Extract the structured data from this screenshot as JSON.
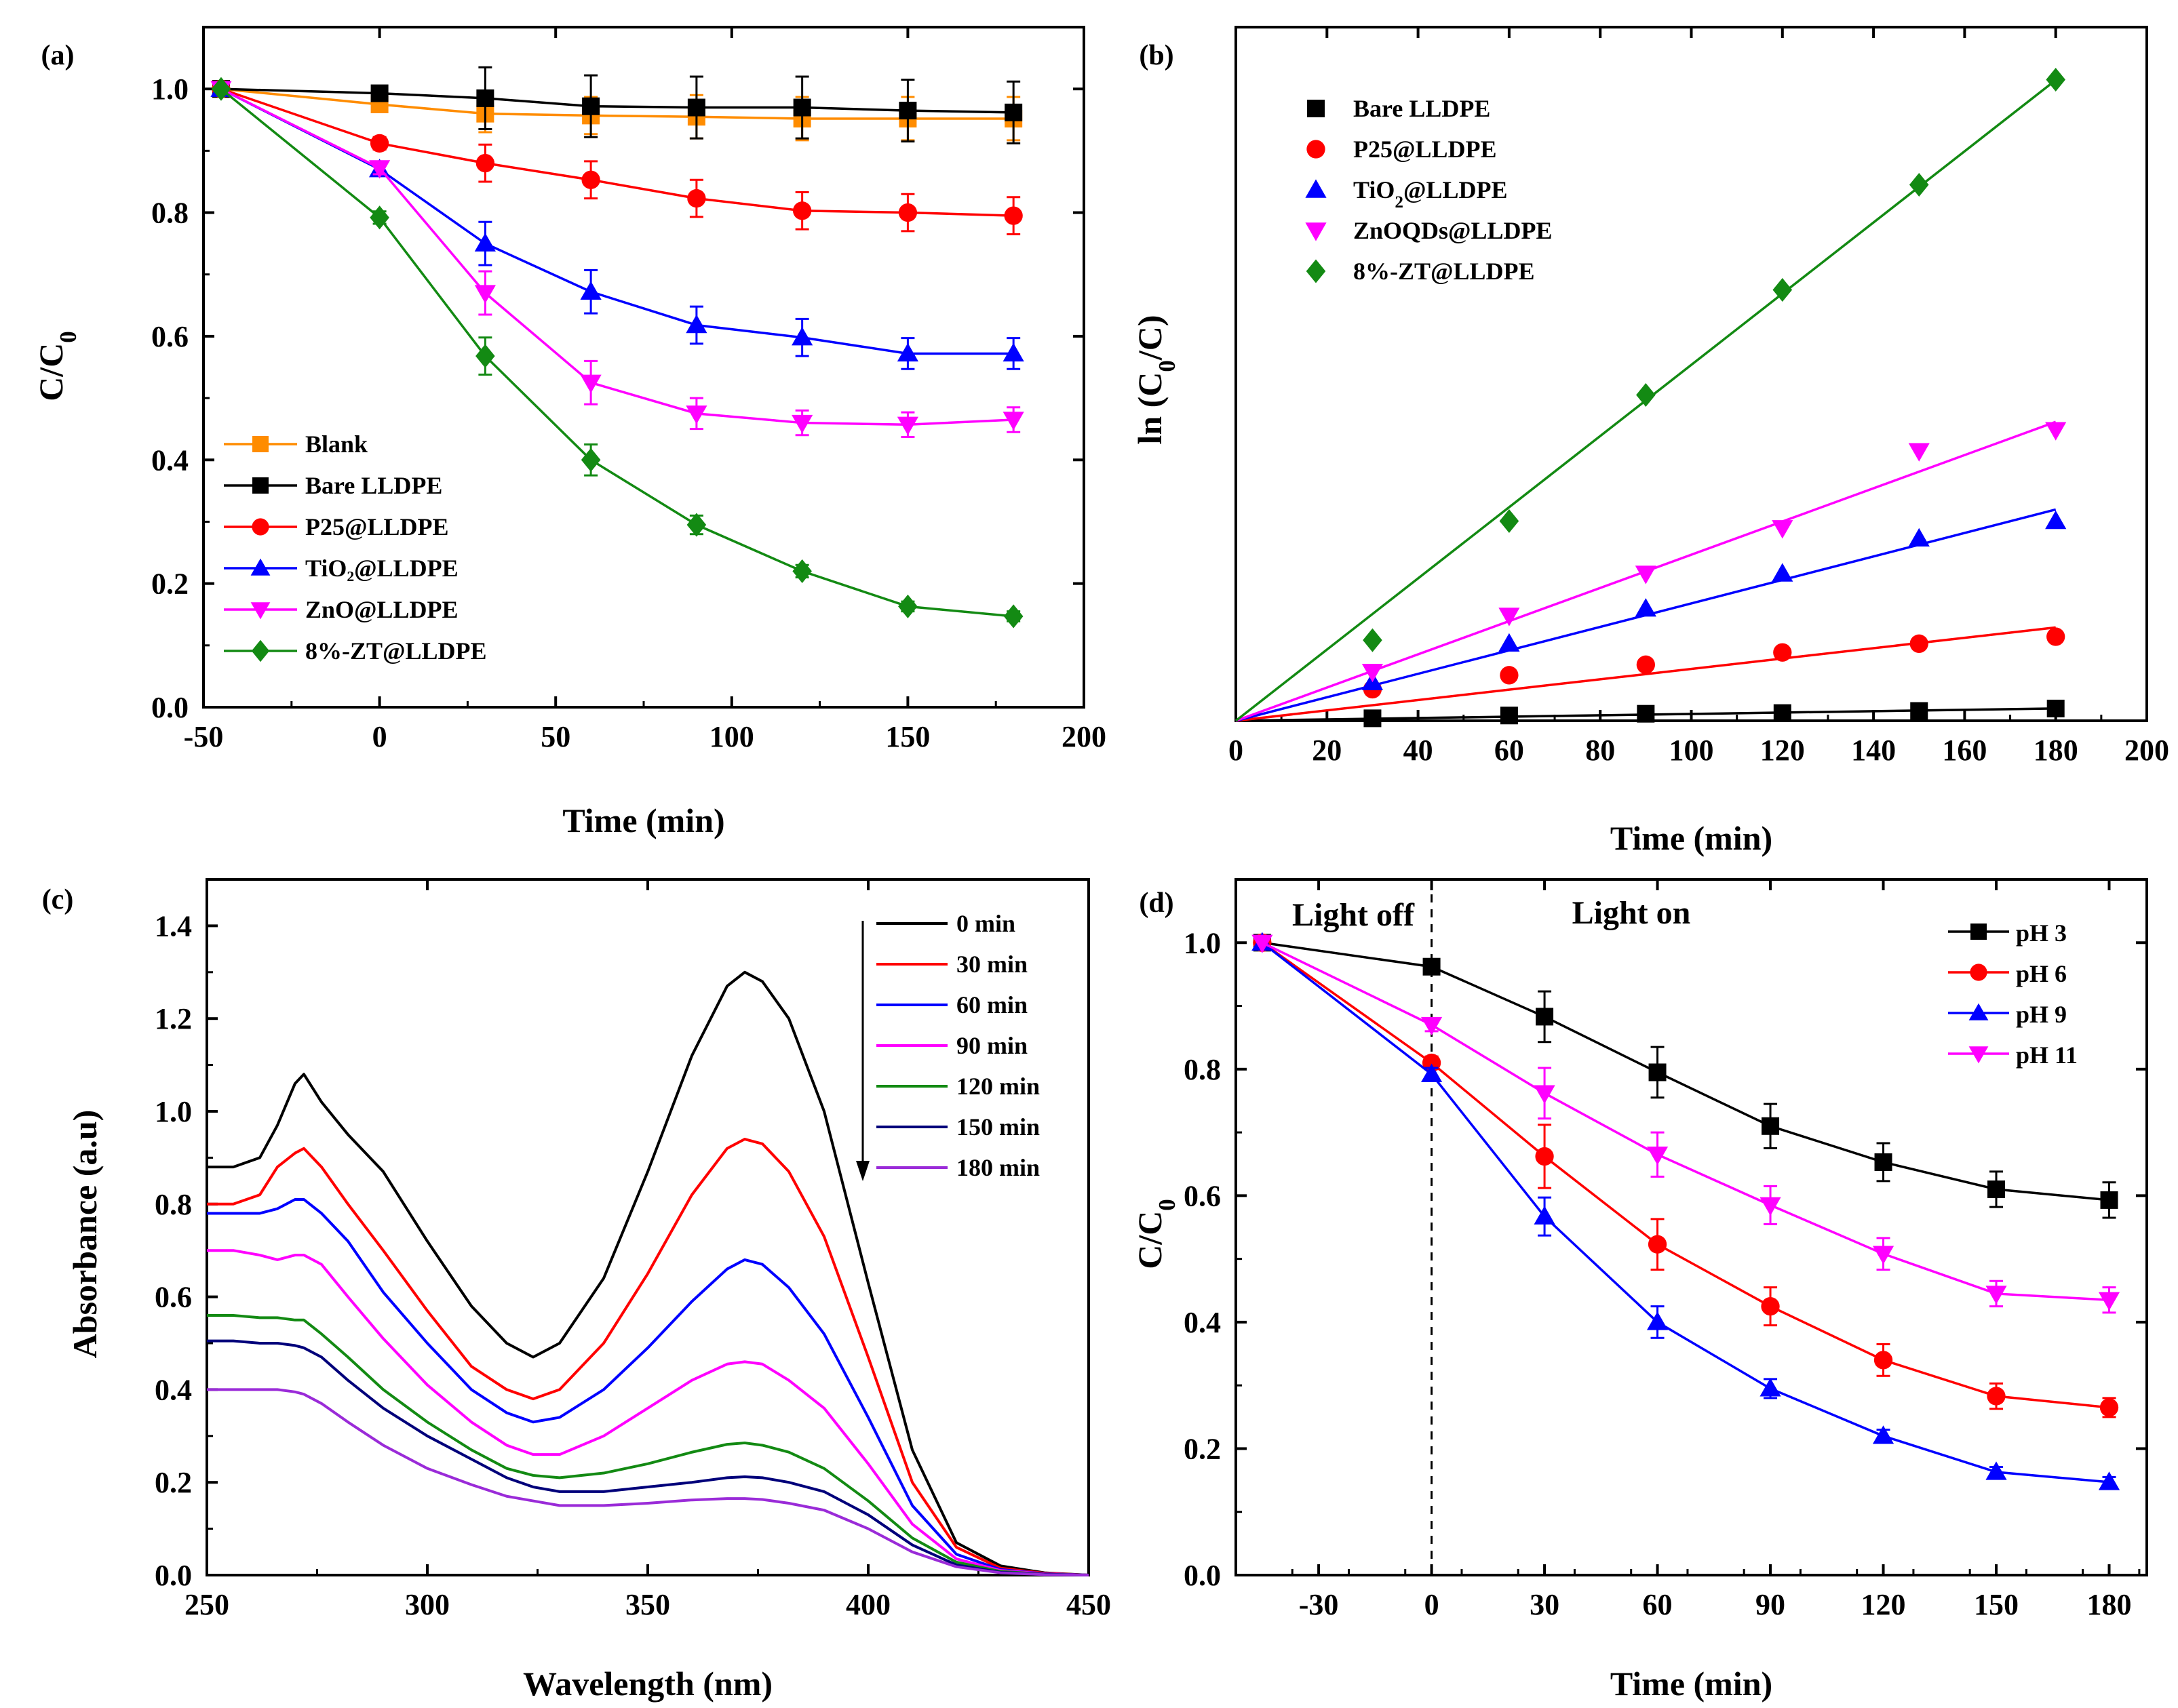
{
  "chart_data": [
    {
      "panel": "(a)",
      "type": "line",
      "xlabel": "Time (min)",
      "ylabel": "C/C0",
      "xlim": [
        -50,
        200
      ],
      "ylim": [
        0.0,
        1.1
      ],
      "xticks": [
        -50,
        0,
        50,
        100,
        150,
        200
      ],
      "yticks": [
        0.0,
        0.2,
        0.4,
        0.6,
        0.8,
        1.0
      ],
      "x": [
        -45,
        0,
        30,
        60,
        90,
        120,
        150,
        180
      ],
      "legend_position": "bottom-left",
      "series": [
        {
          "name": "Blank",
          "color": "#ff8c00",
          "marker": "square",
          "values": [
            1.0,
            0.975,
            0.96,
            0.957,
            0.955,
            0.952,
            0.952,
            0.952
          ],
          "errors": [
            0,
            0.01,
            0.03,
            0.03,
            0.035,
            0.035,
            0.035,
            0.035
          ]
        },
        {
          "name": "Bare LLDPE",
          "color": "#000000",
          "marker": "square",
          "values": [
            1.0,
            0.993,
            0.985,
            0.972,
            0.97,
            0.97,
            0.965,
            0.962
          ],
          "errors": [
            0,
            0.01,
            0.05,
            0.05,
            0.05,
            0.05,
            0.05,
            0.05
          ]
        },
        {
          "name": "P25@LLDPE",
          "color": "#ff0000",
          "marker": "circle",
          "values": [
            1.0,
            0.912,
            0.88,
            0.853,
            0.823,
            0.803,
            0.8,
            0.795
          ],
          "errors": [
            0,
            0.01,
            0.03,
            0.03,
            0.03,
            0.03,
            0.03,
            0.03
          ]
        },
        {
          "name": "TiO₂@LLDPE",
          "color": "#0000ff",
          "marker": "triangle-up",
          "values": [
            1.0,
            0.87,
            0.75,
            0.672,
            0.618,
            0.598,
            0.572,
            0.572
          ],
          "errors": [
            0,
            0.01,
            0.035,
            0.035,
            0.03,
            0.03,
            0.025,
            0.025
          ]
        },
        {
          "name": "ZnO@LLDPE",
          "color": "#ff00ff",
          "marker": "triangle-down",
          "values": [
            1.0,
            0.872,
            0.67,
            0.525,
            0.475,
            0.46,
            0.457,
            0.465
          ],
          "errors": [
            0,
            0.01,
            0.035,
            0.035,
            0.025,
            0.02,
            0.02,
            0.02
          ]
        },
        {
          "name": "8%-ZT@LLDPE",
          "color": "#138a13",
          "marker": "diamond",
          "values": [
            1.0,
            0.792,
            0.568,
            0.4,
            0.295,
            0.22,
            0.163,
            0.147
          ],
          "errors": [
            0,
            0.01,
            0.03,
            0.025,
            0.015,
            0.01,
            0.008,
            0.008
          ]
        }
      ]
    },
    {
      "panel": "(b)",
      "type": "scatter",
      "xlabel": "Time (min)",
      "ylabel": "ln (C0/C)",
      "xlim": [
        0,
        200
      ],
      "ylim": [
        0,
        1.98
      ],
      "xticks": [
        0,
        20,
        40,
        60,
        80,
        100,
        120,
        140,
        160,
        180,
        200
      ],
      "x": [
        30,
        60,
        90,
        120,
        150,
        180
      ],
      "legend_position": "top-left",
      "series": [
        {
          "name": "Bare LLDPE",
          "color": "#000000",
          "marker": "square",
          "values": [
            0.007,
            0.015,
            0.02,
            0.022,
            0.028,
            0.035
          ],
          "fit_slope": 0.000195
        },
        {
          "name": "P25@LLDPE",
          "color": "#ff0000",
          "marker": "circle",
          "values": [
            0.09,
            0.13,
            0.16,
            0.195,
            0.22,
            0.24
          ],
          "fit_slope": 0.00148
        },
        {
          "name": "TiO₂@LLDPE",
          "color": "#0000ff",
          "marker": "triangle-up",
          "values": [
            0.11,
            0.22,
            0.32,
            0.42,
            0.52,
            0.57
          ],
          "fit_slope": 0.00335
        },
        {
          "name": "ZnOQDs@LLDPE",
          "color": "#ff00ff",
          "marker": "triangle-down",
          "values": [
            0.14,
            0.3,
            0.42,
            0.55,
            0.77,
            0.83
          ],
          "fit_slope": 0.00474
        },
        {
          "name": "8%-ZT@LLDPE",
          "color": "#138a13",
          "marker": "diamond",
          "values": [
            0.23,
            0.57,
            0.93,
            1.23,
            1.53,
            1.83
          ],
          "fit_slope": 0.01016
        }
      ]
    },
    {
      "panel": "(c)",
      "type": "line",
      "xlabel": "Wavelength (nm)",
      "ylabel": "Absorbance (a.u)",
      "xlim": [
        250,
        450
      ],
      "ylim": [
        0.0,
        1.5
      ],
      "xticks": [
        250,
        300,
        350,
        400,
        450
      ],
      "yticks": [
        0.0,
        0.2,
        0.4,
        0.6,
        0.8,
        1.0,
        1.2,
        1.4
      ],
      "x": [
        250,
        256,
        262,
        266,
        270,
        272,
        276,
        282,
        290,
        300,
        310,
        318,
        324,
        330,
        340,
        350,
        360,
        368,
        372,
        376,
        382,
        390,
        400,
        410,
        420,
        430,
        440,
        450
      ],
      "legend_position": "top-right",
      "series": [
        {
          "name": "0 min",
          "color": "#000000",
          "values": [
            0.88,
            0.88,
            0.9,
            0.97,
            1.06,
            1.08,
            1.02,
            0.95,
            0.87,
            0.72,
            0.58,
            0.5,
            0.47,
            0.5,
            0.64,
            0.87,
            1.12,
            1.27,
            1.3,
            1.28,
            1.2,
            1.0,
            0.63,
            0.27,
            0.07,
            0.02,
            0.005,
            0.0
          ]
        },
        {
          "name": "30 min",
          "color": "#ff0000",
          "values": [
            0.8,
            0.8,
            0.82,
            0.88,
            0.91,
            0.92,
            0.88,
            0.8,
            0.7,
            0.57,
            0.45,
            0.4,
            0.38,
            0.4,
            0.5,
            0.65,
            0.82,
            0.92,
            0.94,
            0.93,
            0.87,
            0.73,
            0.47,
            0.2,
            0.06,
            0.015,
            0.004,
            0.0
          ]
        },
        {
          "name": "60 min",
          "color": "#0000ff",
          "values": [
            0.78,
            0.78,
            0.78,
            0.79,
            0.81,
            0.81,
            0.78,
            0.72,
            0.61,
            0.5,
            0.4,
            0.35,
            0.33,
            0.34,
            0.4,
            0.49,
            0.59,
            0.66,
            0.68,
            0.67,
            0.62,
            0.52,
            0.34,
            0.15,
            0.045,
            0.012,
            0.003,
            0.0
          ]
        },
        {
          "name": "90 min",
          "color": "#ff00ff",
          "values": [
            0.7,
            0.7,
            0.69,
            0.68,
            0.69,
            0.69,
            0.67,
            0.6,
            0.51,
            0.41,
            0.33,
            0.28,
            0.26,
            0.26,
            0.3,
            0.36,
            0.42,
            0.455,
            0.46,
            0.455,
            0.42,
            0.36,
            0.24,
            0.11,
            0.035,
            0.01,
            0.003,
            0.0
          ]
        },
        {
          "name": "120 min",
          "color": "#138a13",
          "values": [
            0.56,
            0.56,
            0.555,
            0.555,
            0.55,
            0.55,
            0.52,
            0.47,
            0.4,
            0.33,
            0.27,
            0.23,
            0.215,
            0.21,
            0.22,
            0.24,
            0.265,
            0.282,
            0.285,
            0.28,
            0.265,
            0.23,
            0.16,
            0.08,
            0.028,
            0.008,
            0.002,
            0.0
          ]
        },
        {
          "name": "150 min",
          "color": "#00007a",
          "values": [
            0.505,
            0.505,
            0.5,
            0.5,
            0.495,
            0.49,
            0.47,
            0.42,
            0.36,
            0.3,
            0.25,
            0.21,
            0.19,
            0.18,
            0.18,
            0.19,
            0.2,
            0.21,
            0.212,
            0.21,
            0.2,
            0.18,
            0.13,
            0.065,
            0.022,
            0.006,
            0.002,
            0.0
          ]
        },
        {
          "name": "180 min",
          "color": "#9a2bd8",
          "values": [
            0.4,
            0.4,
            0.4,
            0.4,
            0.395,
            0.39,
            0.37,
            0.33,
            0.28,
            0.23,
            0.195,
            0.17,
            0.16,
            0.15,
            0.15,
            0.155,
            0.162,
            0.165,
            0.165,
            0.163,
            0.155,
            0.14,
            0.1,
            0.05,
            0.018,
            0.005,
            0.001,
            0.0
          ]
        }
      ]
    },
    {
      "panel": "(d)",
      "type": "line",
      "xlabel": "Time (min)",
      "ylabel": "C/C0",
      "xlim": [
        -52,
        190
      ],
      "ylim": [
        0.0,
        1.1
      ],
      "xticks": [
        -30,
        0,
        30,
        60,
        90,
        120,
        150,
        180
      ],
      "yticks": [
        0.0,
        0.2,
        0.4,
        0.6,
        0.8,
        1.0
      ],
      "x": [
        -45,
        0,
        30,
        60,
        90,
        120,
        150,
        180
      ],
      "legend_position": "top-right",
      "annotations": [
        "Light off",
        "Light on"
      ],
      "series": [
        {
          "name": "pH 3",
          "color": "#000000",
          "marker": "square",
          "values": [
            1.0,
            0.962,
            0.883,
            0.795,
            0.71,
            0.653,
            0.61,
            0.593
          ],
          "errors": [
            0,
            0.01,
            0.04,
            0.04,
            0.035,
            0.03,
            0.028,
            0.028
          ]
        },
        {
          "name": "pH 6",
          "color": "#ff0000",
          "marker": "circle",
          "values": [
            1.0,
            0.81,
            0.662,
            0.523,
            0.425,
            0.34,
            0.283,
            0.265
          ],
          "errors": [
            0,
            0.01,
            0.05,
            0.04,
            0.03,
            0.025,
            0.02,
            0.015
          ]
        },
        {
          "name": "pH 9",
          "color": "#0000ff",
          "marker": "triangle-up",
          "values": [
            1.0,
            0.792,
            0.567,
            0.4,
            0.295,
            0.22,
            0.163,
            0.147
          ],
          "errors": [
            0,
            0.01,
            0.03,
            0.025,
            0.015,
            0.01,
            0.008,
            0.008
          ]
        },
        {
          "name": "pH 11",
          "color": "#ff00ff",
          "marker": "triangle-down",
          "values": [
            1.0,
            0.87,
            0.762,
            0.665,
            0.585,
            0.508,
            0.445,
            0.435
          ],
          "errors": [
            0,
            0.01,
            0.04,
            0.035,
            0.03,
            0.025,
            0.02,
            0.02
          ]
        }
      ]
    }
  ]
}
